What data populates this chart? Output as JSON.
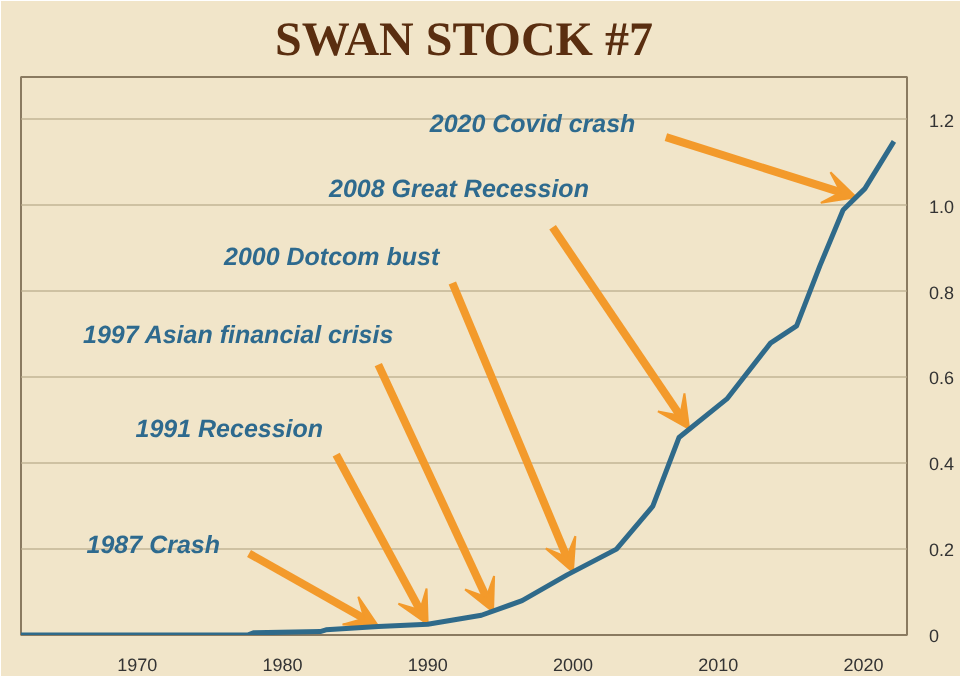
{
  "chart_data": {
    "type": "line",
    "title": "SWAN STOCK #7",
    "x": [
      1962,
      1977.6,
      1978,
      1982.6,
      1983,
      1986.6,
      1990,
      1993.7,
      1996.5,
      1999.6,
      2003,
      2005.5,
      2007.3,
      2010.6,
      2013.6,
      2015.4,
      2017,
      2018.6,
      2020.1,
      2022.1
    ],
    "series": [
      {
        "color": "#2f6a8a",
        "values": [
          0,
          0,
          0.005,
          0.008,
          0.012,
          0.02,
          0.025,
          0.046,
          0.08,
          0.14,
          0.2,
          0.3,
          0.46,
          0.55,
          0.68,
          0.72,
          0.86,
          0.99,
          1.04,
          1.15
        ]
      }
    ],
    "xlim": [
      1962,
      2023
    ],
    "xticks": [
      1970,
      1980,
      1990,
      2000,
      2010,
      2020
    ],
    "ylim": [
      0,
      1.3
    ],
    "yticks": [
      0,
      0.2,
      0.4,
      0.6,
      0.8,
      {
        "value": 1.0,
        "label": "1.0"
      },
      1.2
    ],
    "grid": "y",
    "line_style": "solid",
    "annotations": [
      {
        "text": "1987 Crash",
        "x": 1986.6,
        "y": 0.02
      },
      {
        "text": "1991 Recession",
        "x": 1990,
        "y": 0.025
      },
      {
        "text": "1997 Asian financial crisis",
        "x": 1994.5,
        "y": 0.054
      },
      {
        "text": "2000 Dotcom bust",
        "x": 2000,
        "y": 0.147
      },
      {
        "text": "2008 Great Recession",
        "x": 2008,
        "y": 0.48
      },
      {
        "text": "2020 Covid crash",
        "x": 2019.5,
        "y": 1.02
      }
    ]
  }
}
